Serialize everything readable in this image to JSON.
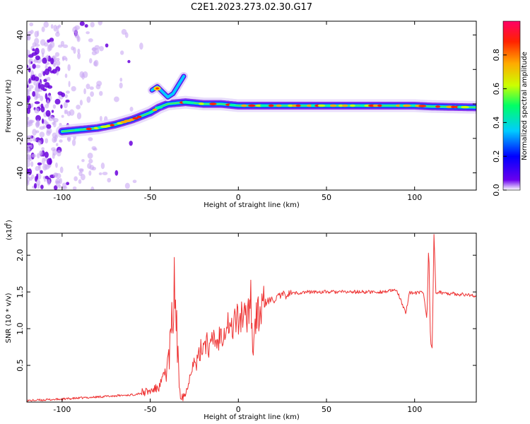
{
  "title": "C2E1.2023.273.02.30.G17",
  "chart_data": [
    {
      "type": "heatmap",
      "xlabel": "Height of straight line (km)",
      "ylabel": "Frequency (Hz)",
      "xlim": [
        -120,
        135
      ],
      "ylim": [
        -50,
        48
      ],
      "xticks": [
        "-100",
        "-50",
        "0",
        "50",
        "100"
      ],
      "yticks": [
        "-40",
        "-20",
        "0",
        "20",
        "40"
      ],
      "colorbar": {
        "label": "Normalized spectral amplitude",
        "range": [
          0,
          1
        ],
        "ticks": [
          "0.0",
          "0.2",
          "0.4",
          "0.6",
          "0.8"
        ],
        "colormap": "rainbow"
      },
      "ridge": {
        "x": [
          -100,
          -90,
          -80,
          -70,
          -60,
          -50,
          -45,
          -40,
          -35,
          -30,
          -20,
          -10,
          0,
          20,
          50,
          80,
          100,
          110,
          135
        ],
        "y": [
          -16,
          -15,
          -14,
          -12,
          -9,
          -5,
          -2,
          0,
          0.5,
          1,
          0,
          0,
          -1,
          -1,
          -1,
          -1,
          -1,
          -1.5,
          -2
        ]
      },
      "branch": {
        "x": [
          -49,
          -46,
          -43,
          -40,
          -37,
          -34,
          -31
        ],
        "y": [
          8,
          10,
          7,
          4,
          6,
          11,
          16
        ]
      }
    },
    {
      "type": "line",
      "xlabel": "Height of straight line (km)",
      "ylabel": "SNR (10 * v/v)",
      "y_multiplier": "(x10",
      "y_multiplier_exp": "4",
      "xlim": [
        -120,
        135
      ],
      "ylim": [
        0,
        2.3
      ],
      "xticks": [
        "-100",
        "-50",
        "0",
        "50",
        "100"
      ],
      "yticks": [
        "0.5",
        "1.0",
        "1.5",
        "2.0"
      ],
      "color": "#ee3333",
      "series": [
        {
          "x": [
            -120,
            -100,
            -80,
            -60,
            -50,
            -45,
            -40,
            -38,
            -37,
            -36,
            -35,
            -34,
            -33,
            -32,
            -30,
            -28,
            -26,
            -24,
            -22,
            -20,
            -18,
            -16,
            -14,
            -12,
            -10,
            -8,
            -6,
            -4,
            -2,
            0,
            2,
            4,
            6,
            7,
            8,
            10,
            12,
            15,
            20,
            25,
            30,
            40,
            50,
            60,
            70,
            80,
            90,
            95,
            97,
            100,
            105,
            107,
            108,
            109,
            110,
            111,
            112,
            120,
            135
          ],
          "y": [
            0.02,
            0.04,
            0.07,
            0.1,
            0.15,
            0.2,
            0.5,
            0.9,
            1.3,
            1.55,
            1.0,
            0.4,
            0.15,
            0.1,
            0.1,
            0.3,
            0.55,
            0.5,
            0.65,
            0.8,
            0.85,
            0.7,
            0.9,
            0.8,
            0.95,
            1.0,
            1.1,
            0.95,
            1.15,
            1.1,
            1.2,
            1.1,
            1.3,
            1.6,
            0.7,
            1.15,
            1.2,
            1.35,
            1.4,
            1.45,
            1.48,
            1.5,
            1.5,
            1.5,
            1.5,
            1.5,
            1.52,
            1.2,
            1.5,
            1.48,
            1.5,
            1.1,
            2.2,
            0.8,
            0.75,
            2.3,
            1.5,
            1.48,
            1.45
          ]
        }
      ]
    }
  ]
}
